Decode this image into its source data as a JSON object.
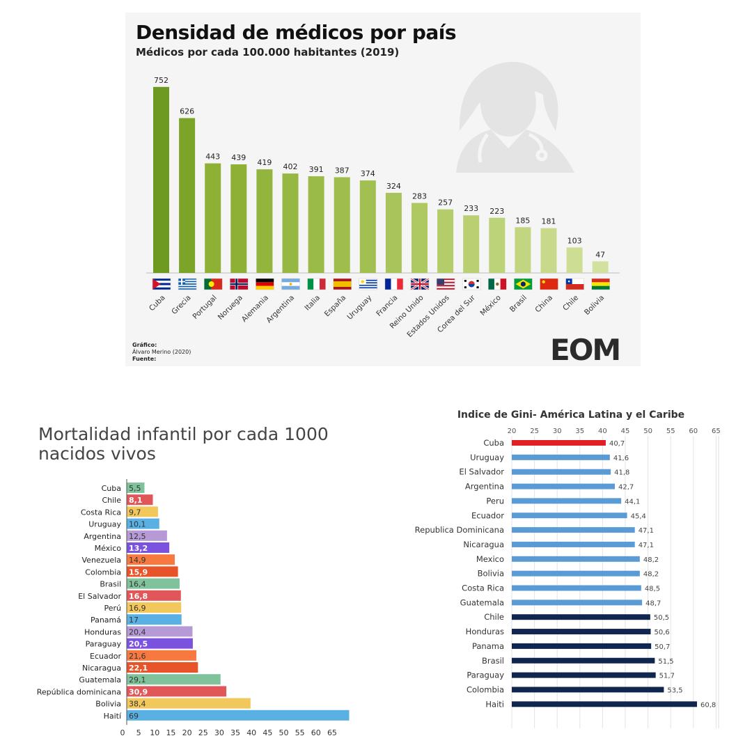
{
  "top": {
    "title": "Densidad de médicos por país",
    "subtitle": "Médicos por cada 100.000 habitantes (2019)",
    "credits": [
      {
        "label": "Gráfico:",
        "text": "Álvaro Merino (2020)"
      },
      {
        "label": "Fuente:",
        "text": ""
      }
    ],
    "logo_text": "EOM"
  },
  "chart_data": [
    {
      "type": "bar",
      "title": "Densidad de médicos por país",
      "subtitle": "Médicos por cada 100.000 habitantes (2019)",
      "categories": [
        "Cuba",
        "Grecia",
        "Portugal",
        "Noruega",
        "Alemania",
        "Argentina",
        "Italia",
        "España",
        "Uruguay",
        "Francia",
        "Reino Unido",
        "Estados Unidos",
        "Corea del Sur",
        "México",
        "Brasil",
        "China",
        "Chile",
        "Bolivia"
      ],
      "values": [
        752,
        626,
        443,
        439,
        419,
        402,
        391,
        387,
        374,
        324,
        283,
        257,
        233,
        223,
        185,
        181,
        103,
        47
      ],
      "flags": [
        "cuba",
        "greece",
        "portugal",
        "norway",
        "germany",
        "argentina",
        "italy",
        "spain",
        "uruguay",
        "france",
        "uk",
        "usa",
        "south-korea",
        "mexico",
        "brazil",
        "china",
        "chile",
        "bolivia"
      ],
      "colors": [
        "#6e9a21",
        "#7ba428",
        "#8db035",
        "#8db035",
        "#93b53d",
        "#96b742",
        "#9abb47",
        "#9ebd4c",
        "#a2c052",
        "#a8c45a",
        "#aec862",
        "#b4cc6a",
        "#b9cf72",
        "#bdd37a",
        "#c2d682",
        "#c8d98b",
        "#cddd94",
        "#d3e19e"
      ],
      "ylim": [
        0,
        760
      ]
    },
    {
      "type": "bar",
      "orientation": "horizontal",
      "title": "Mortalidad infantil por cada 1000 nacidos vivos",
      "categories": [
        "Cuba",
        "Chile",
        "Costa Rica",
        "Uruguay",
        "Argentina",
        "México",
        "Venezuela",
        "Colombia",
        "Brasil",
        "El Salvador",
        "Perú",
        "Panamá",
        "Honduras",
        "Paraguay",
        "Ecuador",
        "Nicaragua",
        "Guatemala",
        "República dominicana",
        "Bolivia",
        "Haití"
      ],
      "values": [
        5.5,
        8.1,
        9.7,
        10.1,
        12.5,
        13.2,
        14.9,
        15.9,
        16.4,
        16.8,
        16.9,
        17,
        20.4,
        20.5,
        21.6,
        22.1,
        29.1,
        30.9,
        38.4,
        69
      ],
      "value_labels": [
        "5,5",
        "8,1",
        "9,7",
        "10,1",
        "12,5",
        "13,2",
        "14,9",
        "15,9",
        "16,4",
        "16,8",
        "16,9",
        "17",
        "20,4",
        "20,5",
        "21,6",
        "22,1",
        "29,1",
        "30,9",
        "38,4",
        "69"
      ],
      "colors": [
        "#7fc29b",
        "#e15759",
        "#f2c75c",
        "#59b0e3",
        "#b59ad6",
        "#7b52e0",
        "#f7793f",
        "#e8542a",
        "#7fc29b",
        "#e15759",
        "#f2c75c",
        "#59b0e3",
        "#b59ad6",
        "#7b52e0",
        "#f7793f",
        "#e8542a",
        "#7fc29b",
        "#e15759",
        "#f2c75c",
        "#59b0e3"
      ],
      "label_white": [
        false,
        true,
        false,
        false,
        false,
        true,
        false,
        true,
        false,
        true,
        false,
        false,
        false,
        true,
        false,
        true,
        false,
        true,
        false,
        false
      ],
      "xticks": [
        0,
        5,
        10,
        15,
        20,
        25,
        30,
        35,
        40,
        45,
        50,
        55,
        60,
        65
      ],
      "xlim": [
        0,
        70
      ]
    },
    {
      "type": "bar",
      "orientation": "horizontal",
      "title": "Indice de Gini- América Latina y el Caribe",
      "categories": [
        "Cuba",
        "Uruguay",
        "El Salvador",
        "Argentina",
        "Peru",
        "Ecuador",
        "Republica Dominicana",
        "Nicaragua",
        "Mexico",
        "Bolivia",
        "Costa Rica",
        "Guatemala",
        "Chile",
        "Honduras",
        "Panama",
        "Brasil",
        "Paraguay",
        "Colombia",
        "Haiti"
      ],
      "values": [
        40.7,
        41.6,
        41.8,
        42.7,
        44.1,
        45.4,
        47.1,
        47.1,
        48.2,
        48.2,
        48.5,
        48.7,
        50.5,
        50.6,
        50.7,
        51.5,
        51.7,
        53.5,
        60.8
      ],
      "value_labels": [
        "40,7",
        "41,6",
        "41,8",
        "42,7",
        "44,1",
        "45,4",
        "47,1",
        "47,1",
        "48,2",
        "48,2",
        "48,5",
        "48,7",
        "50,5",
        "50,6",
        "50,7",
        "51,5",
        "51,7",
        "53,5",
        "60,8"
      ],
      "colors": [
        "#e01f26",
        "#5b9bd5",
        "#5b9bd5",
        "#5b9bd5",
        "#5b9bd5",
        "#5b9bd5",
        "#5b9bd5",
        "#5b9bd5",
        "#5b9bd5",
        "#5b9bd5",
        "#5b9bd5",
        "#5b9bd5",
        "#10264f",
        "#10264f",
        "#10264f",
        "#10264f",
        "#10264f",
        "#10264f",
        "#10264f"
      ],
      "xticks": [
        20,
        25,
        30,
        35,
        40,
        45,
        50,
        55,
        60,
        65
      ],
      "xlim": [
        20,
        65
      ]
    }
  ],
  "mortalidad": {
    "title_line1": "Mortalidad infantil por cada 1000",
    "title_line2": "nacidos vivos"
  },
  "gini": {
    "title": "Indice de Gini- América Latina y el Caribe"
  }
}
